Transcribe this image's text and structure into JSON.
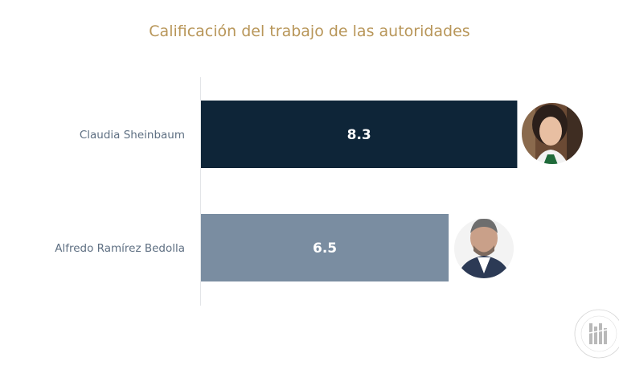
{
  "chart_data": {
    "type": "bar",
    "orientation": "horizontal",
    "title": "Calificación del trabajo de las autoridades",
    "categories": [
      "Claudia Sheinbaum",
      "Alfredo Ramírez Bedolla"
    ],
    "values": [
      8.3,
      6.5
    ],
    "value_labels": [
      "8.3",
      "6.5"
    ],
    "colors": [
      "#0e2538",
      "#7a8da1"
    ],
    "xlim": [
      0,
      10
    ],
    "grid": false,
    "legend": "none"
  },
  "photos": [
    {
      "name": "claudia-sheinbaum-photo"
    },
    {
      "name": "alfredo-ramirez-bedolla-photo"
    }
  ],
  "colors": {
    "title": "#b89659",
    "axis": "#e2e5e8",
    "category_text": "#5e6f82",
    "watermark": "#b9b9b9"
  },
  "watermark": {
    "icon": "gallup-style-seal-logo"
  }
}
